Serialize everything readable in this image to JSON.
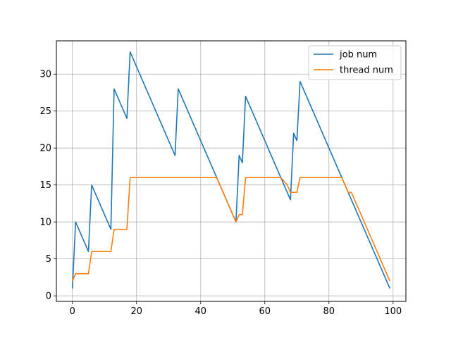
{
  "chart_data": {
    "type": "line",
    "title": "",
    "xlabel": "",
    "ylabel": "",
    "xlim": [
      -5,
      104
    ],
    "ylim": [
      -0.75,
      34.5
    ],
    "xticks": [
      0,
      20,
      40,
      60,
      80,
      100
    ],
    "yticks": [
      0,
      5,
      10,
      15,
      20,
      25,
      30
    ],
    "grid": true,
    "legend_position": "top-right",
    "series": [
      {
        "name": "job num",
        "color": "#1f77b4",
        "x": [
          0,
          1,
          5,
          6,
          12,
          13,
          17,
          18,
          32,
          33,
          51,
          52,
          53,
          54,
          68,
          69,
          70,
          71,
          99
        ],
        "y": [
          1,
          10,
          6,
          15,
          9,
          28,
          24,
          33,
          19,
          28,
          10,
          19,
          18,
          27,
          13,
          22,
          21,
          29,
          1
        ]
      },
      {
        "name": "thread num",
        "color": "#ff7f0e",
        "x": [
          0,
          1,
          5,
          6,
          12,
          13,
          17,
          18,
          45,
          51,
          52,
          53,
          54,
          65,
          67,
          68,
          70,
          71,
          84,
          86,
          87,
          88,
          99
        ],
        "y": [
          2,
          3,
          3,
          6,
          6,
          9,
          9,
          16,
          16,
          10,
          11,
          11,
          16,
          16,
          15,
          14,
          14,
          16,
          16,
          14,
          14,
          13,
          2
        ]
      }
    ]
  }
}
